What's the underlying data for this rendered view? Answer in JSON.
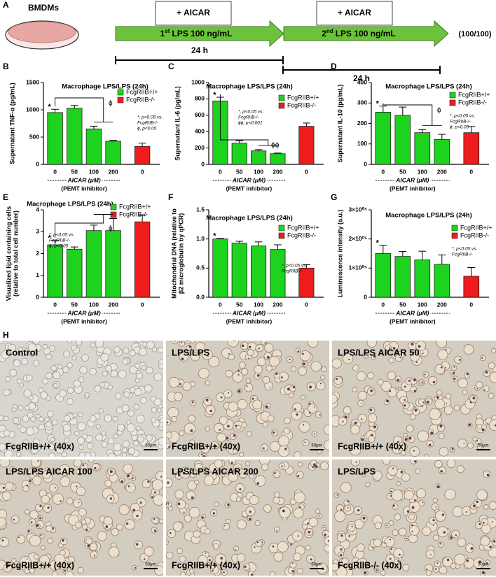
{
  "schematic": {
    "panel": "A",
    "dish_label": "BMDMs",
    "treatment_1": "+ AICAR",
    "treatment_2": "+ AICAR",
    "stimulus_1": {
      "ordinal": "1",
      "suffix": "st",
      "text": "LPS 100 ng/mL"
    },
    "stimulus_2": {
      "ordinal": "2",
      "suffix": "nd",
      "text": "LPS 100 ng/mL"
    },
    "dose_ratio": "(100/100)",
    "duration_1": "24 h",
    "duration_2": "24 h"
  },
  "chart_data": [
    {
      "type": "bar",
      "panel": "B",
      "title": "Macrophage LPS/LPS (24h)",
      "ylabel": [
        "Supernatant TNF-α (pg/mL)"
      ],
      "xlabel": "AICAR (μM)",
      "xsublabel": "(PEMT inhibitor)",
      "categories": [
        "0",
        "50",
        "100",
        "200",
        "0"
      ],
      "series": [
        {
          "name": "FcgRIIB+/+",
          "color": "#1ed31e",
          "values": [
            950,
            1030,
            650,
            425,
            null
          ],
          "errors": [
            60,
            50,
            50,
            15,
            null
          ]
        },
        {
          "name": "FcgRIIB-/-",
          "color": "#ee1c1c",
          "values": [
            null,
            null,
            null,
            null,
            330
          ],
          "errors": [
            null,
            null,
            null,
            null,
            60
          ]
        }
      ],
      "ylim": [
        0,
        1500
      ],
      "yticks": [
        0,
        500,
        1000,
        1500
      ],
      "markers": [
        "*",
        "ϕ"
      ],
      "notes": [
        "*, p<0.05 vs.",
        "FcgRIIB-/-",
        "ϕ, p<0.05"
      ]
    },
    {
      "type": "bar",
      "panel": "C",
      "title": "Macrophage LPS/LPS (24h)",
      "ylabel": [
        "Supernatant IL-6 (pg/mL)"
      ],
      "xlabel": "AICAR (μM)",
      "xsublabel": "(PEMT inhibitor)",
      "categories": [
        "0",
        "50",
        "100",
        "200",
        "0"
      ],
      "series": [
        {
          "name": "FcgRIIB+/+",
          "color": "#1ed31e",
          "values": [
            775,
            260,
            165,
            130,
            null
          ],
          "errors": [
            45,
            30,
            15,
            8,
            null
          ]
        },
        {
          "name": "FcgRIIB-/-",
          "color": "#ee1c1c",
          "values": [
            null,
            null,
            null,
            null,
            465
          ],
          "errors": [
            null,
            null,
            null,
            null,
            40
          ]
        }
      ],
      "ylim": [
        0,
        1000
      ],
      "yticks": [
        0,
        200,
        400,
        600,
        800,
        1000
      ],
      "markers": [
        "*",
        "ϕϕ"
      ],
      "notes": [
        "*, p<0.05 vs.",
        "FcgRIIB-/-",
        "ϕϕ, p<0.001"
      ]
    },
    {
      "type": "bar",
      "panel": "D",
      "title": "Macrophage LPS/LPS (24h)",
      "ylabel": [
        "Supernatant IL-10 (pg/mL)"
      ],
      "xlabel": "AICAR (μM)",
      "xsublabel": "(PEMT inhibitor)",
      "categories": [
        "0",
        "50",
        "100",
        "200",
        "0"
      ],
      "series": [
        {
          "name": "FcgRIIB+/+",
          "color": "#1ed31e",
          "values": [
            255,
            240,
            155,
            122,
            null
          ],
          "errors": [
            30,
            40,
            15,
            25,
            null
          ]
        },
        {
          "name": "FcgRIIB-/-",
          "color": "#ee1c1c",
          "values": [
            null,
            null,
            null,
            null,
            155
          ],
          "errors": [
            null,
            null,
            null,
            null,
            30
          ]
        }
      ],
      "ylim": [
        0,
        400
      ],
      "yticks": [
        0,
        100,
        200,
        300,
        400
      ],
      "markers": [
        "*",
        "ϕ"
      ],
      "notes": [
        "*, p<0.05 vs.",
        "FcgRIIB-/-",
        "ϕ, p<0.05"
      ]
    },
    {
      "type": "bar",
      "panel": "E",
      "title": "Macrophage LPS/LPS (24h)",
      "ylabel": [
        "Visualized lipid containing cells",
        "(relative to total cell number)"
      ],
      "xlabel": "AICAR (μM)",
      "xsublabel": "(PEMT inhibitor)",
      "categories": [
        "0",
        "50",
        "100",
        "200",
        "0"
      ],
      "series": [
        {
          "name": "FcgRIIB+/+",
          "color": "#1ed31e",
          "values": [
            2.4,
            2.2,
            3.05,
            3.05,
            null
          ],
          "errors": [
            0.2,
            0.1,
            0.25,
            0.55,
            null
          ]
        },
        {
          "name": "FcgRIIB-/-",
          "color": "#ee1c1c",
          "values": [
            null,
            null,
            null,
            null,
            3.45
          ],
          "errors": [
            null,
            null,
            null,
            null,
            0.3
          ]
        }
      ],
      "ylim": [
        0,
        4
      ],
      "yticks": [
        0,
        1,
        2,
        3,
        4
      ],
      "markers": [
        "*",
        "ϕ"
      ],
      "notes": [
        "*, p<0.05 vs.",
        "FcgRIIB-/-",
        "ϕ, p<0.05"
      ]
    },
    {
      "type": "bar",
      "panel": "F",
      "title": "Macrophage LPS/LPS (24h)",
      "ylabel": [
        "Mitochondrial DNA (relative to",
        "β2 microglobulin by qPCR)"
      ],
      "xlabel": "AICAR (μM)",
      "xsublabel": "(PEMT inhibitor)",
      "categories": [
        "0",
        "50",
        "100",
        "200",
        "0"
      ],
      "series": [
        {
          "name": "FcgRIIB+/+",
          "color": "#1ed31e",
          "values": [
            1.0,
            0.93,
            0.88,
            0.82,
            null
          ],
          "errors": [
            0.01,
            0.03,
            0.07,
            0.08,
            null
          ]
        },
        {
          "name": "FcgRIIB-/-",
          "color": "#ee1c1c",
          "values": [
            null,
            null,
            null,
            null,
            0.5
          ],
          "errors": [
            null,
            null,
            null,
            null,
            0.06
          ]
        }
      ],
      "ylim": [
        0,
        1.5
      ],
      "yticks": [
        {
          "value": 0,
          "label": "0.0"
        },
        0.5,
        {
          "value": 1,
          "label": "1.0"
        },
        1.5
      ],
      "markers": [
        "*"
      ],
      "notes": [
        "*, p<0.05 vs.",
        "FcgRIIB-/-"
      ]
    },
    {
      "type": "bar",
      "panel": "G",
      "title": "Macrophage LPS/LPS (24h)",
      "ylabel": [
        "Luminescence intensity (a.u.)"
      ],
      "xlabel": "AICAR (μM)",
      "xsublabel": "(PEMT inhibitor)",
      "categories": [
        "0",
        "50",
        "100",
        "200",
        "0"
      ],
      "series": [
        {
          "name": "FcgRIIB+/+",
          "color": "#1ed31e",
          "values": [
            150000,
            140000,
            128000,
            113000,
            null
          ],
          "errors": [
            28000,
            17000,
            30000,
            32000,
            null
          ]
        },
        {
          "name": "FcgRIIB-/-",
          "color": "#ee1c1c",
          "values": [
            null,
            null,
            null,
            null,
            72000
          ],
          "errors": [
            null,
            null,
            null,
            null,
            30000
          ]
        }
      ],
      "ylim": [
        0,
        300000
      ],
      "yticks": [
        0,
        {
          "value": 100000,
          "label": "1×10⁰⁵"
        },
        {
          "value": 200000,
          "label": "2×10⁰⁵"
        },
        {
          "value": 300000,
          "label": "3×10⁰⁵"
        }
      ],
      "markers": [
        "*"
      ],
      "notes": [
        "*, p<0.05 vs.",
        "FcgRIIB-/-"
      ]
    }
  ],
  "micrographs": {
    "panel": "H",
    "images": [
      {
        "title": "Control",
        "genotype": "FcgRIIB+/+ (40x)",
        "scale": "50μm"
      },
      {
        "title": "LPS/LPS",
        "genotype": "FcgRIIB+/+ (40x)",
        "scale": "50μm"
      },
      {
        "title": "LPS/LPS AICAR 50",
        "genotype": "FcgRIIB+/+ (40x)",
        "scale": "50μm"
      },
      {
        "title": "LPS/LPS AICAR 100",
        "genotype": "FcgRIIB+/+ (40x)",
        "scale": "50μm"
      },
      {
        "title": "LPS/LPS AICAR 200",
        "genotype": "FcgRIIB+/+ (40x)",
        "scale": "50μm"
      },
      {
        "title": "LPS/LPS",
        "genotype": "FcgRIIB-/- (40x)",
        "scale": "50μm"
      }
    ]
  }
}
